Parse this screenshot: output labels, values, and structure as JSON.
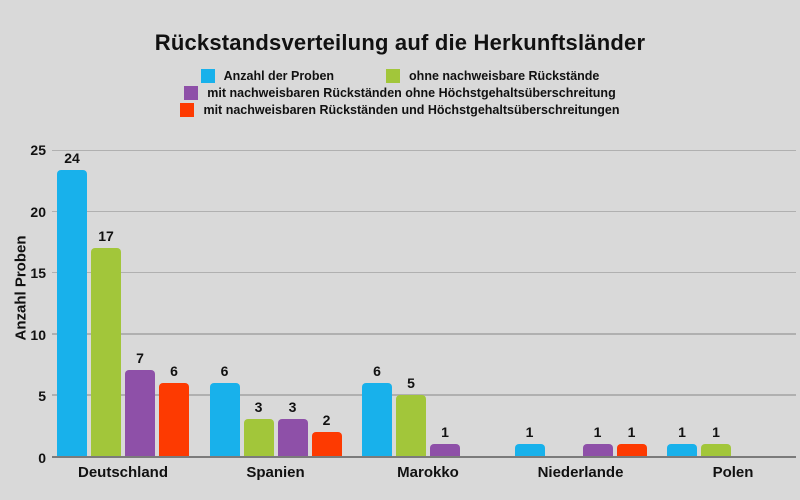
{
  "chart_data": {
    "type": "bar",
    "title": "Rückstandsverteilung auf die Herkunftsländer",
    "xlabel": "",
    "ylabel": "Anzahl Proben",
    "ylim": [
      0,
      25
    ],
    "yticks": [
      0,
      5,
      10,
      15,
      20,
      25
    ],
    "grid": true,
    "legend_position": "top-center",
    "categories": [
      "Deutschland",
      "Spanien",
      "Marokko",
      "Niederlande",
      "Polen"
    ],
    "series": [
      {
        "name": "Anzahl der Proben",
        "color": "#18b1eb",
        "values": [
          24,
          6,
          6,
          1,
          1
        ]
      },
      {
        "name": "ohne nachweisbare Rückstände",
        "color": "#a2c63a",
        "values": [
          17,
          3,
          5,
          0,
          1
        ]
      },
      {
        "name": "mit nachweisbaren Rückständen ohne Höchstgehaltsüberschreitung",
        "color": "#8e50a8",
        "values": [
          7,
          3,
          1,
          1,
          0
        ]
      },
      {
        "name": "mit nachweisbaren Rückständen und Höchstgehaltsüberschreitungen",
        "color": "#fd3a01",
        "values": [
          6,
          2,
          0,
          1,
          0
        ]
      }
    ]
  },
  "colors": {
    "background": "#d9d9d9",
    "gridline": "#b0b0b0",
    "axis": "#7b7b7b",
    "text": "#111111"
  }
}
